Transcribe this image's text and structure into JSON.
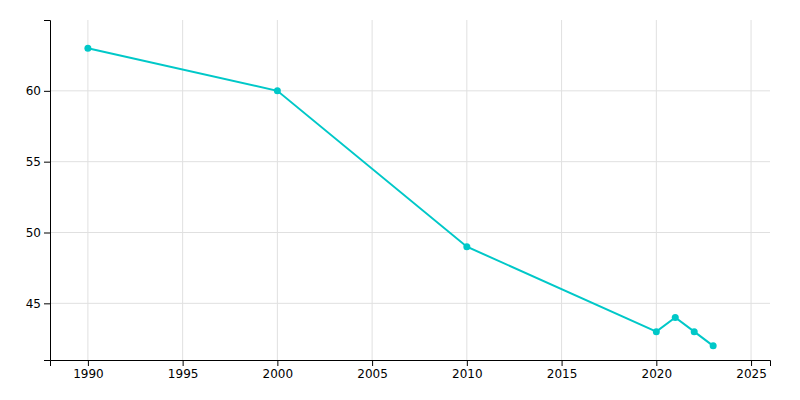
{
  "chart_data": {
    "type": "line",
    "x": [
      1990,
      2000,
      2010,
      2020,
      2021,
      2022,
      2023
    ],
    "values": [
      63,
      60,
      49,
      43,
      44,
      43,
      42
    ],
    "color": "#00c8c8",
    "marker": "circle",
    "xlim": [
      1988,
      2026
    ],
    "ylim": [
      41,
      65
    ],
    "xticks": [
      1990,
      1995,
      2000,
      2005,
      2010,
      2015,
      2020,
      2025
    ],
    "yticks": [
      45,
      50,
      55,
      60
    ],
    "grid": true
  }
}
